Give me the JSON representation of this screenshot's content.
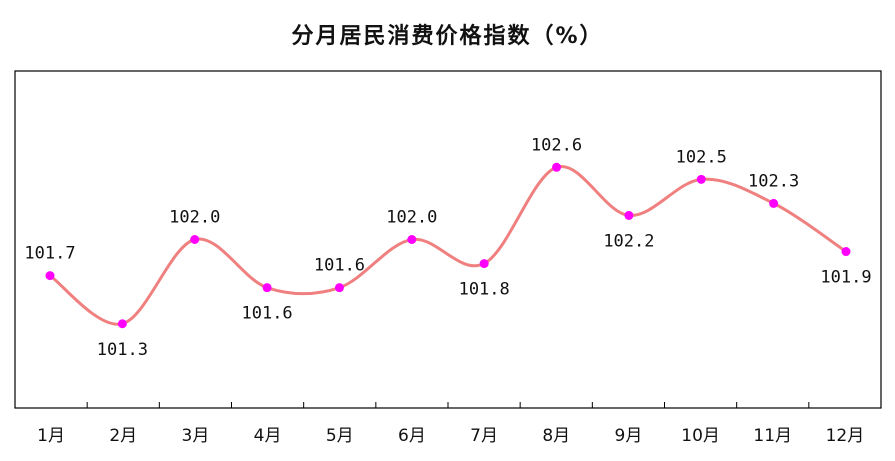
{
  "chart_data": {
    "type": "line",
    "title": "分月居民消费价格指数（%）",
    "categories": [
      "1月",
      "2月",
      "3月",
      "4月",
      "5月",
      "6月",
      "7月",
      "8月",
      "9月",
      "10月",
      "11月",
      "12月"
    ],
    "series": [
      {
        "values": [
          101.7,
          101.3,
          102.0,
          101.6,
          101.6,
          102.0,
          101.8,
          102.6,
          102.2,
          102.5,
          102.3,
          101.9
        ],
        "labels": [
          "101.7",
          "101.3",
          "102.0",
          "101.6",
          "101.6",
          "102.0",
          "101.8",
          "102.6",
          "102.2",
          "102.5",
          "102.3",
          "101.9"
        ],
        "color": "#f08080",
        "marker_color": "#ff00ff"
      }
    ],
    "ylim": [
      100.6,
      103.4
    ],
    "smooth": true,
    "grid": false,
    "legend": "none"
  }
}
